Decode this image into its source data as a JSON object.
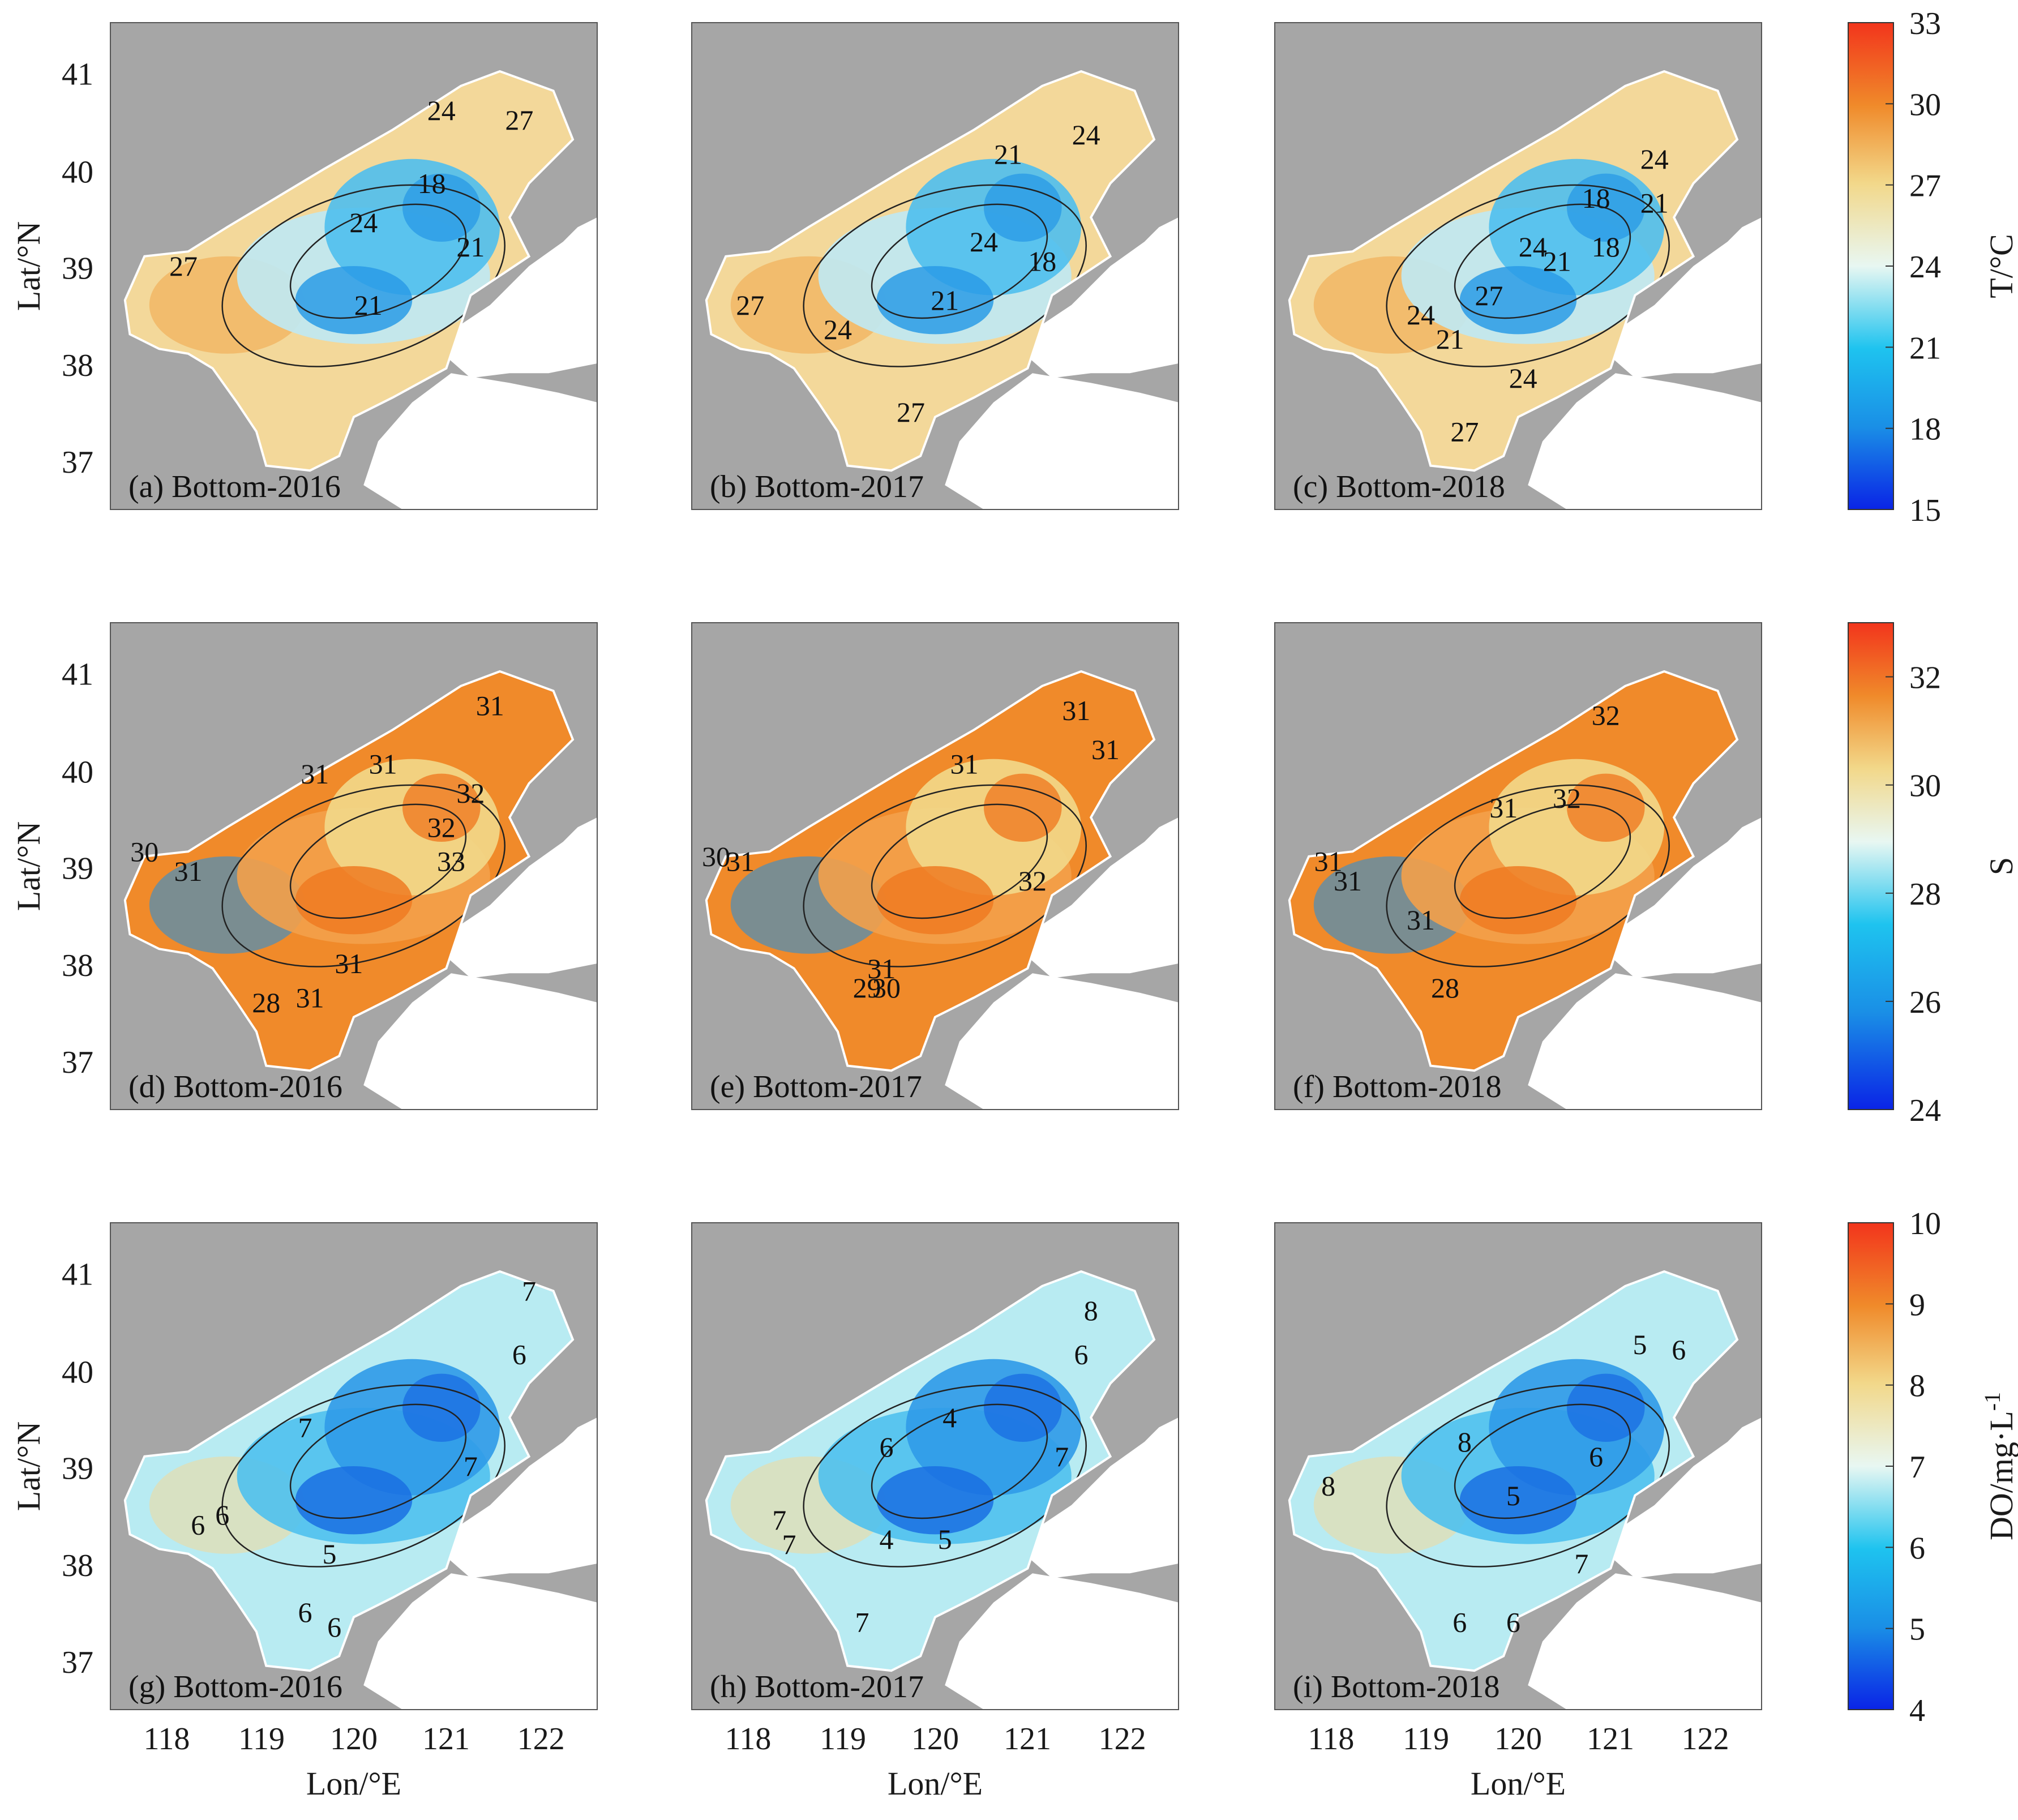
{
  "figure": {
    "x_axis_label": "Lon/°E",
    "y_axis_label": "Lat/°N",
    "lon_ticks": [
      "118",
      "119",
      "120",
      "121",
      "122"
    ],
    "lat_ticks": [
      "41",
      "40",
      "39",
      "38",
      "37"
    ],
    "lon_range": [
      117.5,
      122.5
    ],
    "lat_range": [
      36.5,
      41.5
    ]
  },
  "colorbars": [
    {
      "id": "T",
      "label": "T/°C",
      "ticks": [
        "33",
        "30",
        "27",
        "24",
        "21",
        "18",
        "15"
      ],
      "range": [
        15,
        33
      ]
    },
    {
      "id": "S",
      "label": "S",
      "ticks": [
        "32",
        "30",
        "28",
        "26",
        "24"
      ],
      "range": [
        24,
        33
      ]
    },
    {
      "id": "DO",
      "label": "DO/mg·L",
      "label_sup": "-1",
      "ticks": [
        "10",
        "9",
        "8",
        "7",
        "6",
        "5",
        "4"
      ],
      "range": [
        4,
        10
      ]
    }
  ],
  "panels": [
    {
      "label": "(a) Bottom-2016",
      "variable": "T",
      "contour_labels": [
        "24",
        "27",
        "18",
        "24",
        "21",
        "21",
        "27"
      ]
    },
    {
      "label": "(b) Bottom-2017",
      "variable": "T",
      "contour_labels": [
        "21",
        "24",
        "24",
        "21",
        "18",
        "27",
        "24",
        "27"
      ]
    },
    {
      "label": "(c) Bottom-2018",
      "variable": "T",
      "contour_labels": [
        "24",
        "18",
        "21",
        "18",
        "21",
        "24",
        "27",
        "24",
        "21",
        "24",
        "27"
      ]
    },
    {
      "label": "(d) Bottom-2016",
      "variable": "S",
      "contour_labels": [
        "31",
        "31",
        "31",
        "32",
        "32",
        "33",
        "30",
        "31",
        "31",
        "28",
        "31"
      ]
    },
    {
      "label": "(e) Bottom-2017",
      "variable": "S",
      "contour_labels": [
        "31",
        "31",
        "31",
        "32",
        "30",
        "31",
        "31",
        "29",
        "30"
      ]
    },
    {
      "label": "(f) Bottom-2018",
      "variable": "S",
      "contour_labels": [
        "32",
        "31",
        "32",
        "31",
        "31",
        "31",
        "28"
      ]
    },
    {
      "label": "(g) Bottom-2016",
      "variable": "DO",
      "contour_labels": [
        "7",
        "6",
        "7",
        "7",
        "6",
        "6",
        "5",
        "6",
        "6"
      ]
    },
    {
      "label": "(h) Bottom-2017",
      "variable": "DO",
      "contour_labels": [
        "8",
        "6",
        "6",
        "4",
        "7",
        "4",
        "5",
        "7",
        "7",
        "7"
      ]
    },
    {
      "label": "(i) Bottom-2018",
      "variable": "DO",
      "contour_labels": [
        "5",
        "6",
        "8",
        "8",
        "6",
        "5",
        "7",
        "6",
        "6"
      ]
    }
  ]
}
